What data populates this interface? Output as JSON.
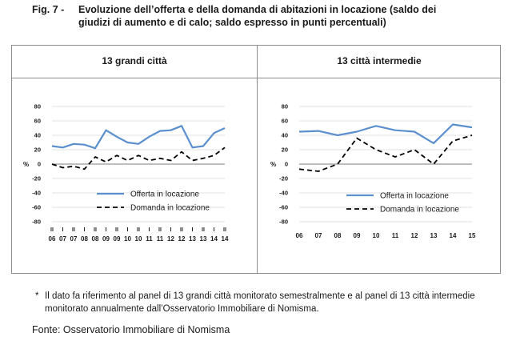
{
  "figure": {
    "number": "Fig. 7 -",
    "title_line1": "Evoluzione dell’offerta e della domanda di abitazioni in locazione (saldo dei",
    "title_line2": "giudizi di aumento e di calo; saldo espresso in punti percentuali)"
  },
  "note": {
    "marker": "*",
    "text": "Il dato fa riferimento al panel di 13 grandi città monitorato semestralmente e al panel di 13 città intermedie monitorato annualmente dall’Osservatorio Immobiliare di Nomisma."
  },
  "source": "Fonte: Osservatorio Immobiliare di Nomisma",
  "colors": {
    "offerta": "#5b8fcd",
    "domanda": "#000000",
    "grid": "#d9d9d9",
    "axis": "#7f7f7f"
  },
  "chart_data": [
    {
      "type": "line",
      "title": "13 grandi città",
      "ylabel": "%",
      "ylim": [
        -80,
        80
      ],
      "yticks": [
        80,
        60,
        40,
        20,
        0,
        -20,
        -40,
        -60,
        -80
      ],
      "grid": true,
      "legend": "inside-center",
      "x_top_labels": [
        "II",
        "I",
        "II",
        "I",
        "II",
        "I",
        "II",
        "I",
        "II",
        "I",
        "II",
        "I",
        "II",
        "I",
        "II",
        "I",
        "II"
      ],
      "x_bottom_labels": [
        "06",
        "07",
        "07",
        "08",
        "08",
        "09",
        "09",
        "10",
        "10",
        "11",
        "11",
        "12",
        "12",
        "13",
        "13",
        "14",
        "14"
      ],
      "series": [
        {
          "name": "Offerta in locazione",
          "style": "solid",
          "values": [
            25,
            23,
            28,
            27,
            22,
            47,
            38,
            30,
            28,
            38,
            46,
            47,
            53,
            23,
            25,
            43,
            50
          ]
        },
        {
          "name": "Domanda in locazione",
          "style": "dashed",
          "values": [
            0,
            -5,
            -3,
            -7,
            10,
            3,
            12,
            5,
            12,
            5,
            8,
            5,
            17,
            5,
            8,
            12,
            23
          ]
        }
      ]
    },
    {
      "type": "line",
      "title": "13 città intermedie",
      "ylabel": "%",
      "ylim": [
        -80,
        80
      ],
      "yticks": [
        80,
        60,
        40,
        20,
        0,
        -20,
        -40,
        -60,
        -80
      ],
      "grid": true,
      "legend": "inside-center",
      "x_top_labels": [],
      "x_bottom_labels": [
        "06",
        "07",
        "08",
        "09",
        "10",
        "11",
        "12",
        "13",
        "14",
        "15"
      ],
      "series": [
        {
          "name": "Offerta in locazione",
          "style": "solid",
          "values": [
            45,
            46,
            40,
            45,
            53,
            47,
            45,
            29,
            55,
            51
          ]
        },
        {
          "name": "Domanda in locazione",
          "style": "dashed",
          "values": [
            -7,
            -10,
            0,
            36,
            20,
            10,
            20,
            0,
            32,
            40
          ]
        }
      ]
    }
  ]
}
